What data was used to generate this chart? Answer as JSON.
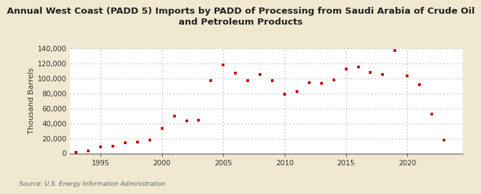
{
  "title": "Annual West Coast (PADD 5) Imports by PADD of Processing from Saudi Arabia of Crude Oil\nand Petroleum Products",
  "ylabel": "Thousand Barrels",
  "source": "Source: U.S. Energy Information Administration",
  "fig_background_color": "#f0e8d0",
  "plot_background_color": "#ffffff",
  "marker_color": "#cc0000",
  "years": [
    1993,
    1994,
    1995,
    1996,
    1997,
    1998,
    1999,
    2000,
    2001,
    2002,
    2003,
    2004,
    2005,
    2006,
    2007,
    2008,
    2009,
    2010,
    2011,
    2012,
    2013,
    2014,
    2015,
    2016,
    2017,
    2018,
    2019,
    2020,
    2021,
    2022,
    2023
  ],
  "values": [
    1500,
    3500,
    9000,
    10000,
    14000,
    15000,
    18000,
    33000,
    50000,
    43000,
    44000,
    97000,
    118000,
    107000,
    97000,
    105000,
    97000,
    79000,
    82000,
    94000,
    93000,
    98000,
    112000,
    115000,
    108000,
    105000,
    137000,
    103000,
    91000,
    52000,
    18000
  ],
  "xlim": [
    1992.5,
    2024.5
  ],
  "ylim": [
    0,
    140000
  ],
  "yticks": [
    0,
    20000,
    40000,
    60000,
    80000,
    100000,
    120000,
    140000
  ],
  "xticks": [
    1995,
    2000,
    2005,
    2010,
    2015,
    2020
  ],
  "grid_color": "#bbbbbb",
  "title_fontsize": 9.5,
  "axis_fontsize": 8,
  "tick_fontsize": 7.5
}
